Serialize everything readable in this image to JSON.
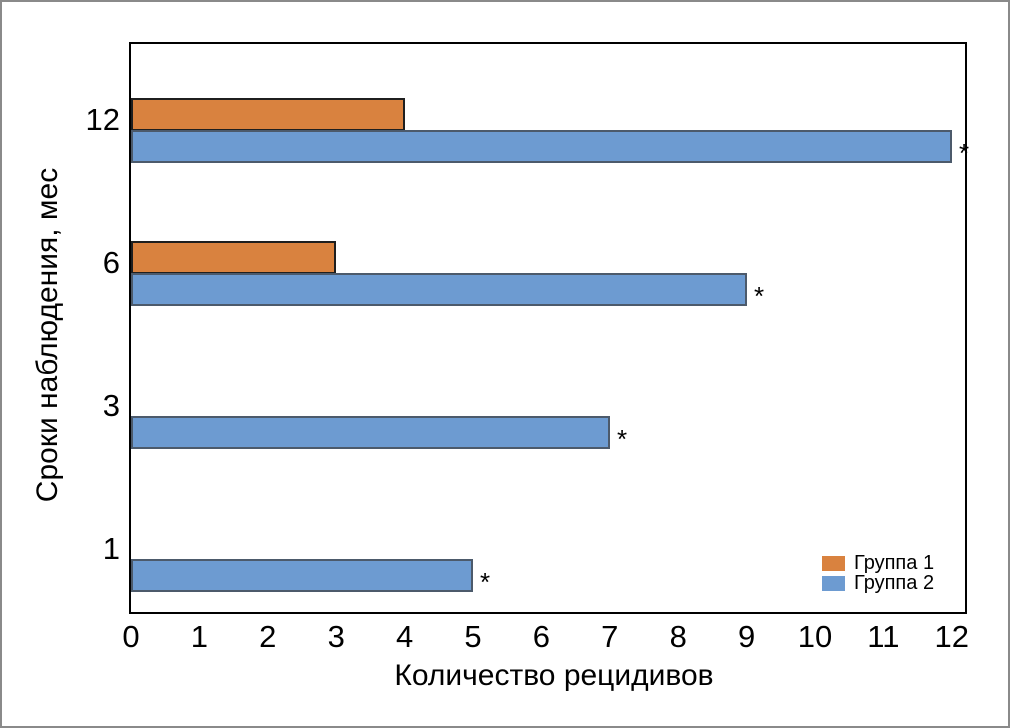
{
  "frame": {
    "background": "#FFFFFF",
    "border_color": "#8A8A8A"
  },
  "chart_data": {
    "type": "bar",
    "orientation": "horizontal",
    "title": "",
    "xlabel": "Количество рецидивов",
    "ylabel": "Сроки наблюдения, мес",
    "categories": [
      "12",
      "6",
      "3",
      "1"
    ],
    "xticks": [
      "0",
      "1",
      "2",
      "3",
      "4",
      "5",
      "6",
      "7",
      "8",
      "9",
      "10",
      "11",
      "12"
    ],
    "xlim": [
      0,
      12.2
    ],
    "grid": false,
    "plot_border_color": "#000000",
    "significance_marker": "*",
    "legend": {
      "position": "inside-bottom-right"
    },
    "series": [
      {
        "name": "Группа 1",
        "color": "#D9823F",
        "border_color": "#1F1F1F",
        "values": [
          4,
          3,
          0,
          0
        ],
        "significant": [
          false,
          false,
          false,
          false
        ]
      },
      {
        "name": "Группа 2",
        "color": "#6D9BD1",
        "border_color": "#4C5A6B",
        "values": [
          12,
          9,
          7,
          5
        ],
        "significant": [
          true,
          true,
          true,
          true
        ]
      }
    ]
  }
}
